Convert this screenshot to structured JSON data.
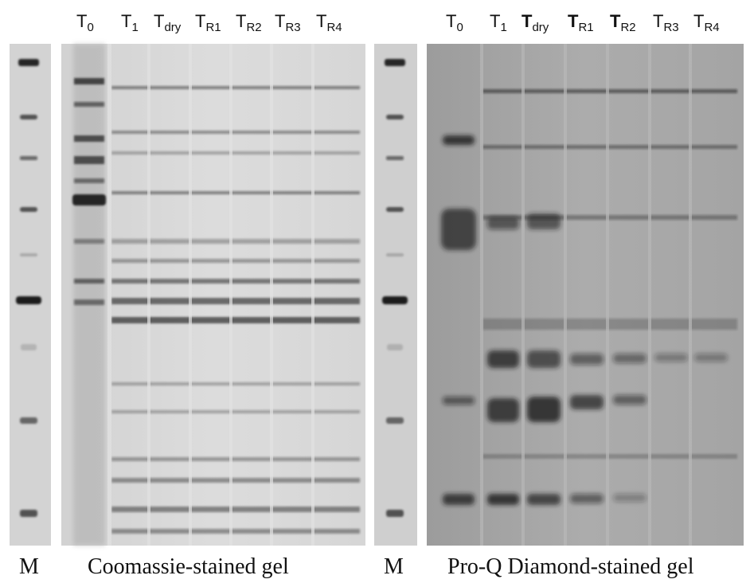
{
  "coomassie": {
    "lanes": [
      {
        "base": "T",
        "sub": "0"
      },
      {
        "base": "T",
        "sub": "1"
      },
      {
        "base": "T",
        "sub": "dry"
      },
      {
        "base": "T",
        "sub": "R1"
      },
      {
        "base": "T",
        "sub": "R2"
      },
      {
        "base": "T",
        "sub": "R3"
      },
      {
        "base": "T",
        "sub": "R4"
      }
    ],
    "caption": "Coomassie-stained gel"
  },
  "proq": {
    "lanes": [
      {
        "base": "T",
        "sub": "0"
      },
      {
        "base": "T",
        "sub": "1"
      },
      {
        "base": "T",
        "sub": "dry"
      },
      {
        "base": "T",
        "sub": "R1"
      },
      {
        "base": "T",
        "sub": "R2"
      },
      {
        "base": "T",
        "sub": "R3"
      },
      {
        "base": "T",
        "sub": "R4"
      }
    ],
    "caption": "Pro-Q Diamond-stained gel"
  },
  "marker_label_left": "M",
  "marker_label_right": "M",
  "colors": {
    "coomassie_bg": "#d9d9d9",
    "proq_bg": "#a9a9a9",
    "band": "#1a1a1a"
  }
}
